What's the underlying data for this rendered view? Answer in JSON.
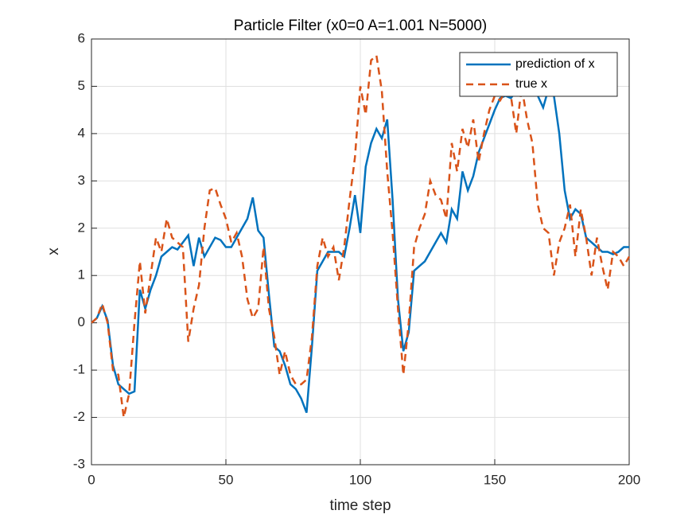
{
  "chart_data": {
    "type": "line",
    "title": "Particle Filter (x0=0 A=1.001 N=5000)",
    "x_label": "time step",
    "y_label": "x",
    "x": [
      0,
      2,
      4,
      6,
      8,
      10,
      12,
      14,
      16,
      18,
      20,
      22,
      24,
      26,
      28,
      30,
      32,
      34,
      36,
      38,
      40,
      42,
      44,
      46,
      48,
      50,
      52,
      54,
      56,
      58,
      60,
      62,
      64,
      66,
      68,
      70,
      72,
      74,
      76,
      78,
      80,
      82,
      84,
      86,
      88,
      90,
      92,
      94,
      96,
      98,
      100,
      102,
      104,
      106,
      108,
      110,
      112,
      114,
      116,
      118,
      120,
      122,
      124,
      126,
      128,
      130,
      132,
      134,
      136,
      138,
      140,
      142,
      144,
      146,
      148,
      150,
      152,
      154,
      156,
      158,
      160,
      162,
      164,
      166,
      168,
      170,
      172,
      174,
      176,
      178,
      180,
      182,
      184,
      186,
      188,
      190,
      192,
      194,
      196,
      198,
      200
    ],
    "series": [
      {
        "name": "prediction of x",
        "color": "#0072bd",
        "dash": false,
        "values": [
          0,
          0.1,
          0.35,
          0.05,
          -0.9,
          -1.3,
          -1.4,
          -1.5,
          -1.45,
          0.7,
          0.3,
          0.7,
          1.0,
          1.4,
          1.5,
          1.6,
          1.55,
          1.7,
          1.85,
          1.2,
          1.8,
          1.4,
          1.6,
          1.8,
          1.75,
          1.6,
          1.6,
          1.8,
          2.0,
          2.2,
          2.65,
          1.95,
          1.8,
          0.6,
          -0.5,
          -0.6,
          -0.9,
          -1.3,
          -1.4,
          -1.6,
          -1.9,
          -0.5,
          1.1,
          1.3,
          1.5,
          1.5,
          1.5,
          1.4,
          2.0,
          2.7,
          1.9,
          3.3,
          3.8,
          4.1,
          3.9,
          4.3,
          2.6,
          0.5,
          -0.6,
          -0.2,
          1.1,
          1.2,
          1.3,
          1.5,
          1.7,
          1.9,
          1.7,
          2.4,
          2.2,
          3.2,
          2.8,
          3.1,
          3.6,
          3.9,
          4.2,
          4.5,
          4.75,
          4.8,
          4.75,
          4.9,
          4.8,
          4.85,
          4.9,
          4.8,
          4.55,
          4.95,
          4.8,
          4.0,
          2.8,
          2.2,
          2.4,
          2.3,
          1.8,
          1.7,
          1.6,
          1.5,
          1.5,
          1.45,
          1.5,
          1.6,
          1.6
        ]
      },
      {
        "name": "true x",
        "color": "#d95319",
        "dash": true,
        "values": [
          0,
          0.1,
          0.4,
          0,
          -1.0,
          -1.1,
          -2.0,
          -1.5,
          0,
          1.3,
          0.2,
          1.0,
          1.8,
          1.5,
          2.2,
          1.8,
          1.7,
          1.6,
          -0.4,
          0.3,
          0.8,
          2.0,
          2.8,
          2.85,
          2.5,
          2.2,
          1.7,
          1.9,
          1.4,
          0.5,
          0.1,
          0.3,
          1.6,
          0.3,
          -0.3,
          -1.1,
          -0.6,
          -1.1,
          -1.3,
          -1.3,
          -1.2,
          -0.3,
          1.2,
          1.8,
          1.4,
          1.6,
          0.9,
          1.6,
          2.6,
          3.5,
          5.0,
          4.4,
          5.55,
          5.65,
          4.9,
          3.2,
          1.9,
          0.3,
          -1.1,
          0,
          1.6,
          2.0,
          2.3,
          3.0,
          2.7,
          2.6,
          2.2,
          3.8,
          3.2,
          4.1,
          3.7,
          4.3,
          3.4,
          4.0,
          4.5,
          4.8,
          4.7,
          4.9,
          4.8,
          4.0,
          5.0,
          4.3,
          3.8,
          2.5,
          2.0,
          1.9,
          1.0,
          1.7,
          2.0,
          2.5,
          1.4,
          2.4,
          1.8,
          1.0,
          1.8,
          1.2,
          0.7,
          1.5,
          1.4,
          1.2,
          1.4
        ]
      }
    ],
    "xlim": [
      0,
      200
    ],
    "xticks": [
      0,
      50,
      100,
      150,
      200
    ],
    "ylim": [
      -3,
      6
    ],
    "yticks": [
      -3,
      -2,
      -1,
      0,
      1,
      2,
      3,
      4,
      5,
      6
    ],
    "grid": true,
    "legend": "northeast"
  }
}
